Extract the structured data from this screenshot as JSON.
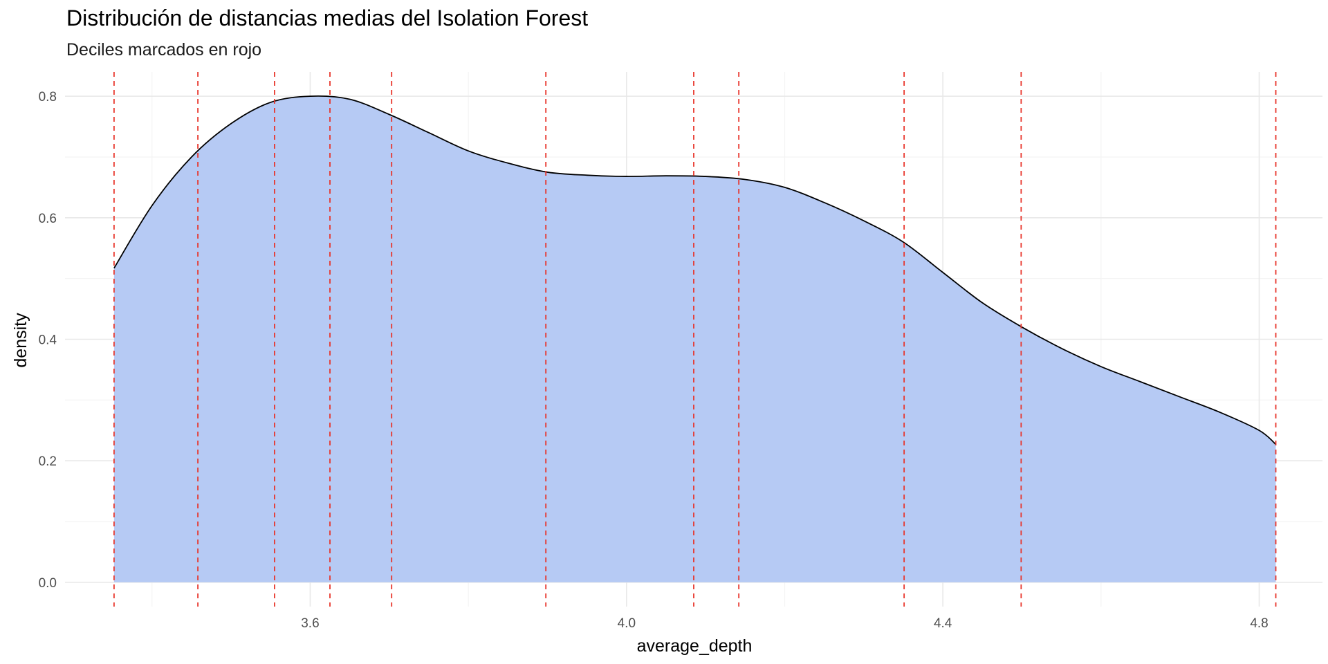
{
  "chart_data": {
    "type": "area",
    "title": "Distribución de distancias medias del Isolation Forest",
    "subtitle": "Deciles marcados en rojo",
    "xlabel": "average_depth",
    "ylabel": "density",
    "xlim": [
      3.29,
      4.88
    ],
    "ylim": [
      -0.04,
      0.84
    ],
    "x_ticks": [
      3.6,
      4.0,
      4.4,
      4.8
    ],
    "x_tick_labels": [
      "3.6",
      "4.0",
      "4.4",
      "4.8"
    ],
    "y_ticks": [
      0.0,
      0.2,
      0.4,
      0.6,
      0.8
    ],
    "y_tick_labels": [
      "0.0",
      "0.2",
      "0.4",
      "0.6",
      "0.8"
    ],
    "grid": true,
    "legend": "none",
    "series": [
      {
        "x": [
          3.352,
          3.4,
          3.45,
          3.5,
          3.55,
          3.6,
          3.65,
          3.7,
          3.75,
          3.8,
          3.85,
          3.9,
          3.95,
          4.0,
          4.05,
          4.1,
          4.15,
          4.2,
          4.25,
          4.3,
          4.35,
          4.4,
          4.45,
          4.5,
          4.55,
          4.6,
          4.65,
          4.7,
          4.75,
          4.8,
          4.821
        ],
        "y": [
          0.517,
          0.62,
          0.7,
          0.755,
          0.79,
          0.8,
          0.795,
          0.77,
          0.74,
          0.71,
          0.69,
          0.675,
          0.67,
          0.668,
          0.669,
          0.668,
          0.663,
          0.65,
          0.625,
          0.595,
          0.56,
          0.51,
          0.46,
          0.42,
          0.385,
          0.355,
          0.33,
          0.305,
          0.28,
          0.25,
          0.227
        ]
      }
    ],
    "deciles": [
      3.352,
      3.458,
      3.555,
      3.625,
      3.703,
      3.898,
      4.085,
      4.142,
      4.351,
      4.499,
      4.821
    ],
    "colors": {
      "fill": "#b6caf4",
      "line": "#000000",
      "decile_line": "#e8342a",
      "grid_major": "#e8e8e8",
      "grid_minor": "#f4f4f4"
    }
  }
}
